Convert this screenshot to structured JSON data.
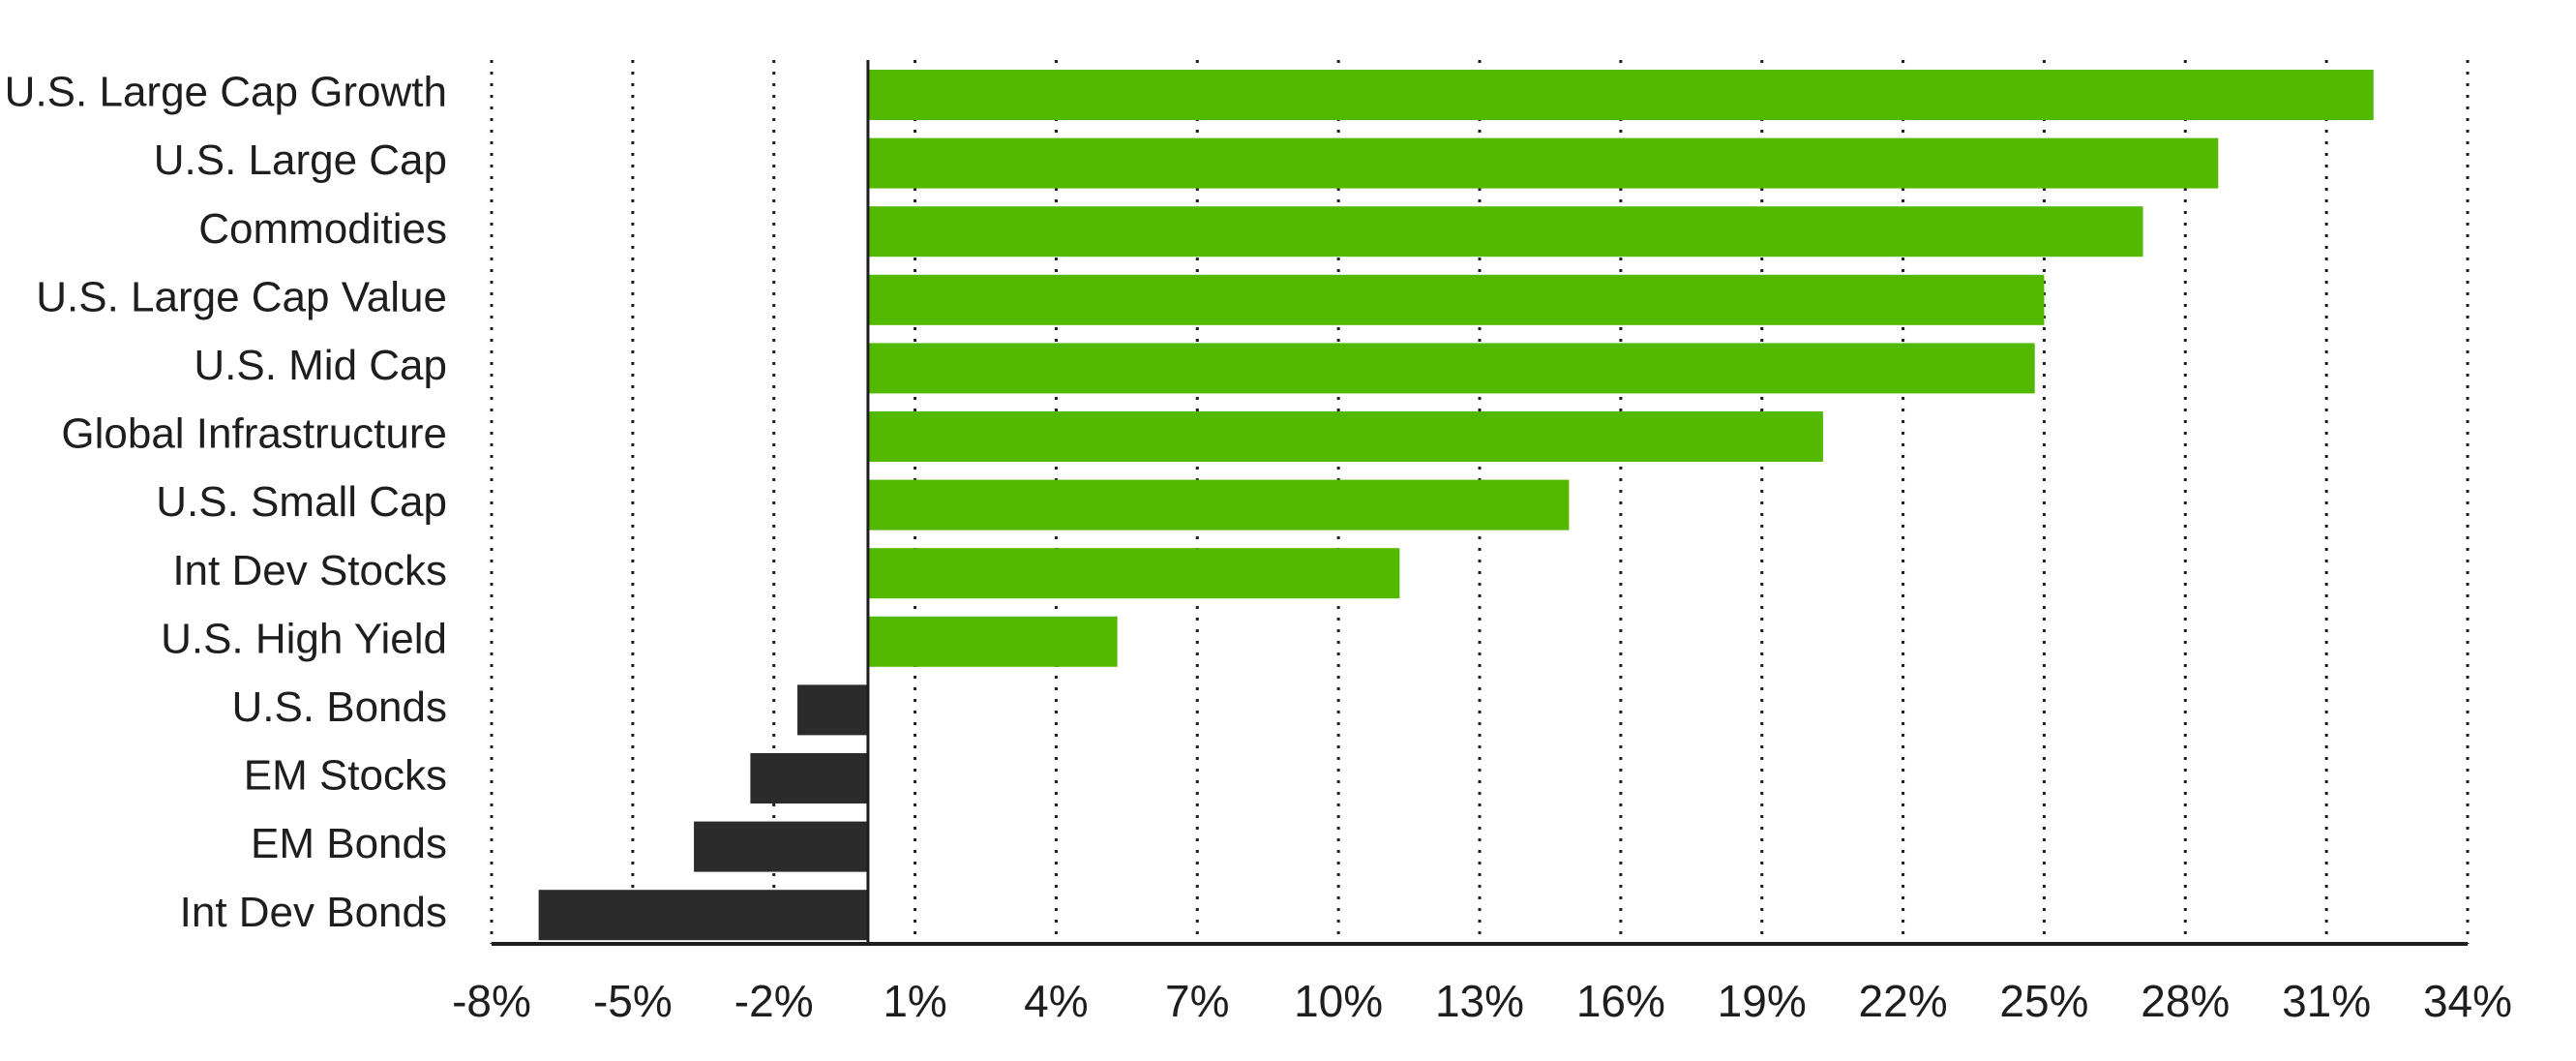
{
  "chart_data": {
    "type": "bar",
    "orientation": "horizontal",
    "categories": [
      "U.S. Large Cap Growth",
      "U.S. Large Cap",
      "Commodities",
      "U.S. Large Cap Value",
      "U.S. Mid Cap",
      "Global Infrastructure",
      "U.S. Small Cap",
      "Int Dev Stocks",
      "U.S. High Yield",
      "U.S. Bonds",
      "EM Stocks",
      "EM Bonds",
      "Int Dev Bonds"
    ],
    "values": [
      32.0,
      28.7,
      27.1,
      25.0,
      24.8,
      20.3,
      14.9,
      11.3,
      5.3,
      -1.5,
      -2.5,
      -3.7,
      -7.0
    ],
    "xlim": [
      -8,
      34
    ],
    "x_ticks": [
      -8,
      -5,
      -2,
      1,
      4,
      7,
      10,
      13,
      16,
      19,
      22,
      25,
      28,
      31,
      34
    ],
    "x_tick_labels": [
      "-8%",
      "-5%",
      "-2%",
      "1%",
      "4%",
      "7%",
      "10%",
      "13%",
      "16%",
      "19%",
      "22%",
      "25%",
      "28%",
      "31%",
      "34%"
    ],
    "grid": "vertical dotted",
    "colors": {
      "positive": "#52b800",
      "negative": "#2b2b2b",
      "axis": "#1e1e1e",
      "grid": "#1e1e1e",
      "text": "#1e1e1e"
    }
  }
}
